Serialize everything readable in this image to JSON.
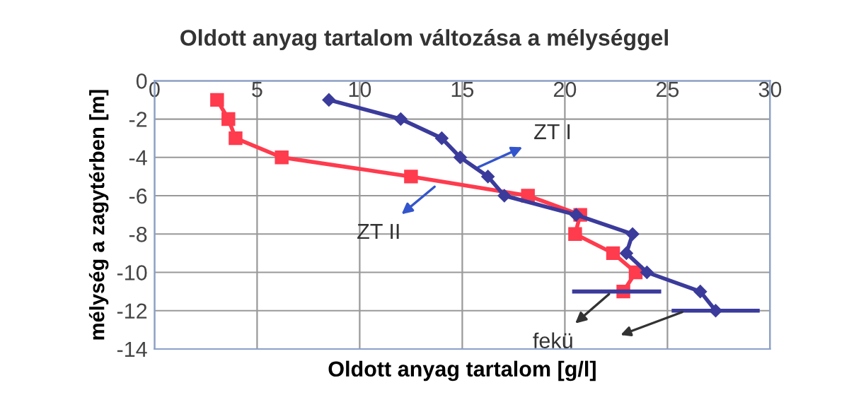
{
  "chart_data": {
    "type": "line",
    "title": "Oldott anyag tartalom változása a mélységgel",
    "xlabel": "Oldott anyag tartalom [g/l]",
    "ylabel": "mélység a zagytérben [m]",
    "xlim": [
      0,
      30
    ],
    "xticks": [
      0,
      5,
      10,
      15,
      20,
      25,
      30
    ],
    "ylim": [
      -14,
      0
    ],
    "yticks": [
      -14,
      -12,
      -10,
      -8,
      -6,
      -4,
      -2,
      0
    ],
    "grid": true,
    "line_style": "solid",
    "series": [
      {
        "color": "#3b3b9c",
        "marker": "diamond",
        "x": [
          8.5,
          12,
          14,
          14.9,
          16.25,
          17.05,
          20.55,
          23.3,
          23.0,
          24.0,
          26.6,
          27.35
        ],
        "values": [
          -1,
          -2,
          -3,
          -4,
          -5,
          -6,
          -7,
          -8,
          -9,
          -10,
          -11,
          -12
        ]
      },
      {
        "color": "#ff3b4e",
        "marker": "square",
        "x": [
          3.05,
          3.6,
          3.95,
          6.2,
          12.5,
          18.2,
          20.75,
          20.5,
          22.35,
          23.45,
          22.85
        ],
        "values": [
          -1,
          -2,
          -3,
          -4,
          -5,
          -6,
          -7,
          -8,
          -9,
          -10,
          -11
        ]
      },
      {
        "color": "#3b3b9c",
        "marker": "none",
        "x": [
          20.45,
          24.6
        ],
        "values": [
          -11,
          -11
        ]
      },
      {
        "color": "#3b3b9c",
        "marker": "none",
        "x": [
          25.3,
          29.4
        ],
        "values": [
          -12,
          -12
        ]
      }
    ],
    "annotations": [
      {
        "text": "ZT I",
        "x": 15.6,
        "y": -4.6
      },
      {
        "text": "ZT II",
        "x": 13.8,
        "y": -5.4
      },
      {
        "text": "fekü",
        "x": 22.3,
        "y": -11
      }
    ]
  }
}
